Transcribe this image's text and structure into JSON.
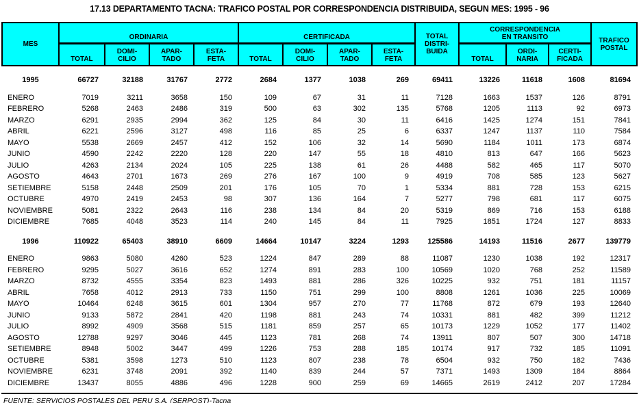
{
  "title": "17.13 DEPARTAMENTO TACNA: TRAFICO POSTAL POR CORRESPONDENCIA DISTRIBUIDA, SEGUN MES: 1995 - 96",
  "colors": {
    "header_bg": "#00FFFF",
    "border": "#000000",
    "text": "#000000",
    "page_bg": "#FFFFFF"
  },
  "header": {
    "mes": "MES",
    "groups": {
      "ordinaria": "ORDINARIA",
      "certificada": "CERTIFICADA",
      "transito": "CORRESPONDENCIA\nEN TRANSITO"
    },
    "total_distribuida": "TOTAL\nDISTRI-\nBUIDA",
    "trafico_postal": "TRAFICO\nPOSTAL",
    "sub": {
      "total": "TOTAL",
      "domicilio": "DOMI-\nCILIO",
      "apartado": "APAR-\nTADO",
      "estafeta": "ESTA-\nFETA",
      "ordinaria": "ORDI-\nNARIA",
      "certificada": "CERTI-\nFICADA"
    }
  },
  "chart_data": {
    "type": "table",
    "title": "17.13 DEPARTAMENTO TACNA: TRAFICO POSTAL POR CORRESPONDENCIA DISTRIBUIDA, SEGUN MES: 1995 - 96",
    "columns": [
      "MES",
      "ORDINARIA TOTAL",
      "ORDINARIA DOMICILIO",
      "ORDINARIA APARTADO",
      "ORDINARIA ESTAFETA",
      "CERTIFICADA TOTAL",
      "CERTIFICADA DOMICILIO",
      "CERTIFICADA APARTADO",
      "CERTIFICADA ESTAFETA",
      "TOTAL DISTRIBUIDA",
      "TRANSITO TOTAL",
      "TRANSITO ORDINARIA",
      "TRANSITO CERTIFICADA",
      "TRAFICO POSTAL"
    ]
  },
  "sections": [
    {
      "year": "1995",
      "totals": [
        66727,
        32188,
        31767,
        2772,
        2684,
        1377,
        1038,
        269,
        69411,
        13226,
        11618,
        1608,
        81694
      ],
      "rows": [
        {
          "month": "ENERO",
          "values": [
            7019,
            3211,
            3658,
            150,
            109,
            67,
            31,
            11,
            7128,
            1663,
            1537,
            126,
            8791
          ]
        },
        {
          "month": "FEBRERO",
          "values": [
            5268,
            2463,
            2486,
            319,
            500,
            63,
            302,
            135,
            5768,
            1205,
            1113,
            92,
            6973
          ]
        },
        {
          "month": "MARZO",
          "values": [
            6291,
            2935,
            2994,
            362,
            125,
            84,
            30,
            11,
            6416,
            1425,
            1274,
            151,
            7841
          ]
        },
        {
          "month": "ABRIL",
          "values": [
            6221,
            2596,
            3127,
            498,
            116,
            85,
            25,
            6,
            6337,
            1247,
            1137,
            110,
            7584
          ]
        },
        {
          "month": "MAYO",
          "values": [
            5538,
            2669,
            2457,
            412,
            152,
            106,
            32,
            14,
            5690,
            1184,
            1011,
            173,
            6874
          ]
        },
        {
          "month": "JUNIO",
          "values": [
            4590,
            2242,
            2220,
            128,
            220,
            147,
            55,
            18,
            4810,
            813,
            647,
            166,
            5623
          ]
        },
        {
          "month": "JULIO",
          "values": [
            4263,
            2134,
            2024,
            105,
            225,
            138,
            61,
            26,
            4488,
            582,
            465,
            117,
            5070
          ]
        },
        {
          "month": "AGOSTO",
          "values": [
            4643,
            2701,
            1673,
            269,
            276,
            167,
            100,
            9,
            4919,
            708,
            585,
            123,
            5627
          ]
        },
        {
          "month": "SETIEMBRE",
          "values": [
            5158,
            2448,
            2509,
            201,
            176,
            105,
            70,
            1,
            5334,
            881,
            728,
            153,
            6215
          ]
        },
        {
          "month": "OCTUBRE",
          "values": [
            4970,
            2419,
            2453,
            98,
            307,
            136,
            164,
            7,
            5277,
            798,
            681,
            117,
            6075
          ]
        },
        {
          "month": "NOVIEMBRE",
          "values": [
            5081,
            2322,
            2643,
            116,
            238,
            134,
            84,
            20,
            5319,
            869,
            716,
            153,
            6188
          ]
        },
        {
          "month": "DICIEMBRE",
          "values": [
            7685,
            4048,
            3523,
            114,
            240,
            145,
            84,
            11,
            7925,
            1851,
            1724,
            127,
            8833
          ]
        }
      ]
    },
    {
      "year": "1996",
      "totals": [
        110922,
        65403,
        38910,
        6609,
        14664,
        10147,
        3224,
        1293,
        125586,
        14193,
        11516,
        2677,
        139779
      ],
      "rows": [
        {
          "month": "ENERO",
          "values": [
            9863,
            5080,
            4260,
            523,
            1224,
            847,
            289,
            88,
            11087,
            1230,
            1038,
            192,
            12317
          ]
        },
        {
          "month": "FEBRERO",
          "values": [
            9295,
            5027,
            3616,
            652,
            1274,
            891,
            283,
            100,
            10569,
            1020,
            768,
            252,
            11589
          ]
        },
        {
          "month": "MARZO",
          "values": [
            8732,
            4555,
            3354,
            823,
            1493,
            881,
            286,
            326,
            10225,
            932,
            751,
            181,
            11157
          ]
        },
        {
          "month": "ABRIL",
          "values": [
            7658,
            4012,
            2913,
            733,
            1150,
            751,
            299,
            100,
            8808,
            1261,
            1036,
            225,
            10069
          ]
        },
        {
          "month": "MAYO",
          "values": [
            10464,
            6248,
            3615,
            601,
            1304,
            957,
            270,
            77,
            11768,
            872,
            679,
            193,
            12640
          ]
        },
        {
          "month": "JUNIO",
          "values": [
            9133,
            5872,
            2841,
            420,
            1198,
            881,
            243,
            74,
            10331,
            881,
            482,
            399,
            11212
          ]
        },
        {
          "month": "JULIO",
          "values": [
            8992,
            4909,
            3568,
            515,
            1181,
            859,
            257,
            65,
            10173,
            1229,
            1052,
            177,
            11402
          ]
        },
        {
          "month": "AGOSTO",
          "values": [
            12788,
            9297,
            3046,
            445,
            1123,
            781,
            268,
            74,
            13911,
            807,
            507,
            300,
            14718
          ]
        },
        {
          "month": "SETIEMBRE",
          "values": [
            8948,
            5002,
            3447,
            499,
            1226,
            753,
            288,
            185,
            10174,
            917,
            732,
            185,
            11091
          ]
        },
        {
          "month": "OCTUBRE",
          "values": [
            5381,
            3598,
            1273,
            510,
            1123,
            807,
            238,
            78,
            6504,
            932,
            750,
            182,
            7436
          ]
        },
        {
          "month": "NOVIEMBRE",
          "values": [
            6231,
            3748,
            2091,
            392,
            1140,
            839,
            244,
            57,
            7371,
            1493,
            1309,
            184,
            8864
          ]
        },
        {
          "month": "DICIEMBRE",
          "values": [
            13437,
            8055,
            4886,
            496,
            1228,
            900,
            259,
            69,
            14665,
            2619,
            2412,
            207,
            17284
          ]
        }
      ]
    }
  ],
  "footer": "FUENTE: SERVICIOS POSTALES DEL PERU S.A. (SERPOST)-Tacna"
}
